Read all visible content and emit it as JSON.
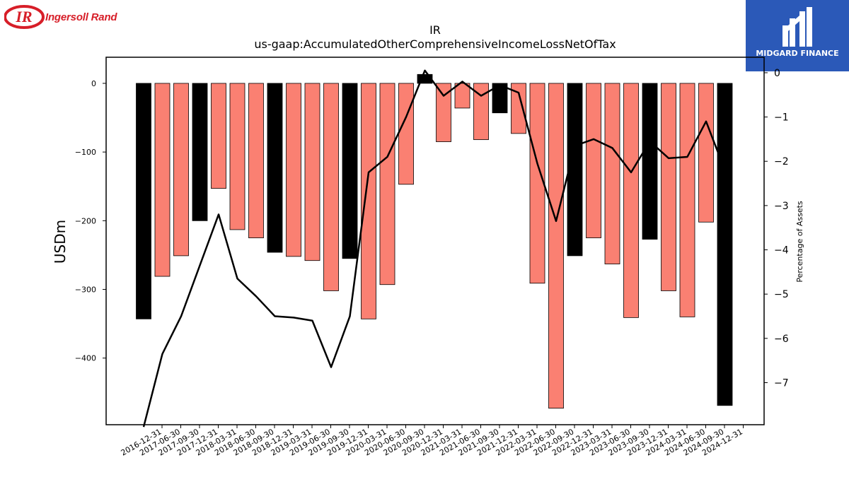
{
  "brand": {
    "name": "Ingersoll Rand",
    "mark": "IR",
    "color": "#d71e28"
  },
  "partner": {
    "name": "MIDGARD FINANCE",
    "background": "#2b59b8"
  },
  "chart_data": {
    "type": "bar",
    "title": "IR",
    "subtitle": "us-gaap:AccumulatedOtherComprehensiveIncomeLossNetOfTax",
    "xlabel": "",
    "ylabel": "USDm",
    "y2label": "Percentage of Assets",
    "ylim": [
      -497,
      38
    ],
    "y2lim": [
      -7.95,
      0.35
    ],
    "yticks": [
      0,
      -100,
      -200,
      -300,
      -400
    ],
    "y2ticks": [
      0,
      -1,
      -2,
      -3,
      -4,
      -5,
      -6,
      -7
    ],
    "grid": false,
    "categories": [
      "2016-12-31",
      "2017-06-30",
      "2017-09-30",
      "2017-12-31",
      "2018-03-31",
      "2018-06-30",
      "2018-09-30",
      "2018-12-31",
      "2019-03-31",
      "2019-06-30",
      "2019-09-30",
      "2019-12-31",
      "2020-03-31",
      "2020-06-30",
      "2020-09-30",
      "2020-12-31",
      "2021-03-31",
      "2021-06-30",
      "2021-09-30",
      "2021-12-31",
      "2022-03-31",
      "2022-06-30",
      "2022-09-30",
      "2022-12-31",
      "2023-03-31",
      "2023-06-30",
      "2023-09-30",
      "2023-12-31",
      "2024-03-31",
      "2024-06-30",
      "2024-09-30",
      "2024-12-31"
    ],
    "series": [
      {
        "kind": "bar",
        "values": [
          -343,
          -281,
          -251,
          -200,
          -153,
          -213,
          -225,
          -246,
          -252,
          -258,
          -302,
          -255,
          -343,
          -293,
          -147,
          13,
          -85,
          -36,
          -82,
          -43,
          -73,
          -291,
          -473,
          -251,
          -225,
          -263,
          -341,
          -227,
          -302,
          -340,
          -202,
          -469
        ],
        "quarter_end_color": "#000000",
        "other_color": "#fa8072"
      },
      {
        "kind": "line",
        "axis": "right",
        "color": "#000000",
        "values": [
          -8.0,
          -6.35,
          -5.5,
          -4.35,
          -3.2,
          -4.65,
          -5.05,
          -5.5,
          -5.53,
          -5.6,
          -6.65,
          -5.5,
          -2.25,
          -1.9,
          -1.0,
          0.05,
          -0.52,
          -0.2,
          -0.52,
          -0.28,
          -0.45,
          -2.05,
          -3.35,
          -1.65,
          -1.5,
          -1.7,
          -2.25,
          -1.55,
          -1.93,
          -1.9,
          -1.1,
          -2.2
        ]
      }
    ]
  }
}
